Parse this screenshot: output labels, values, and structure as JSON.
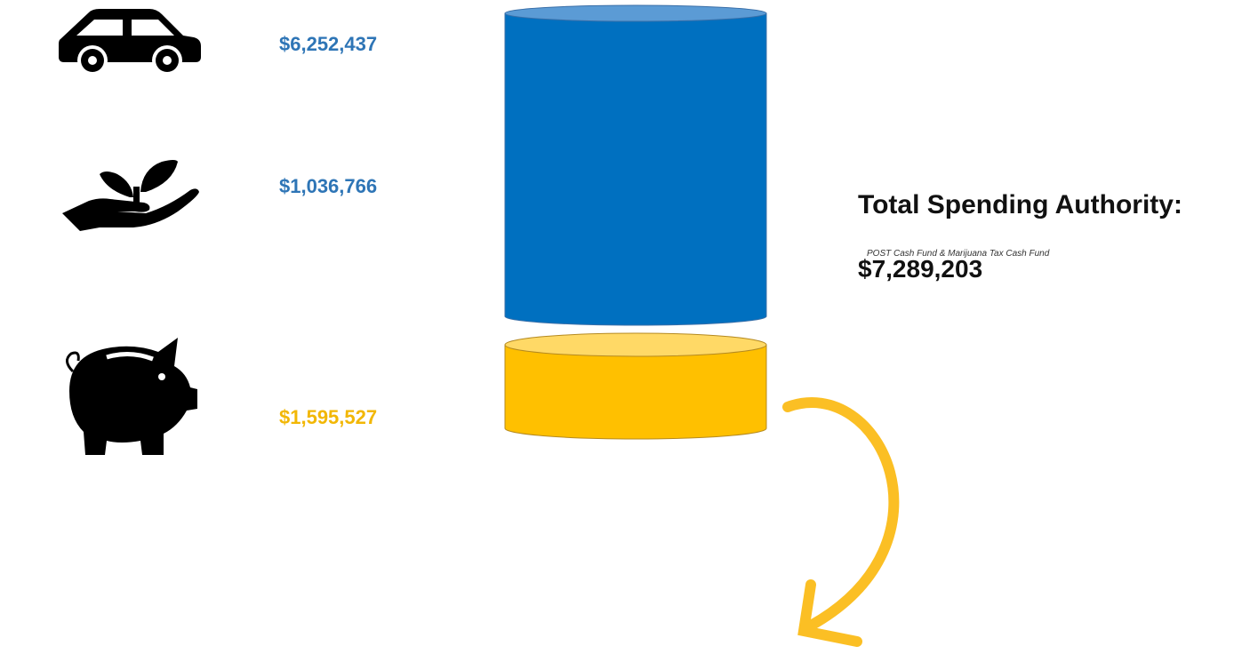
{
  "items": [
    {
      "amount": "$6,252,437"
    },
    {
      "amount": "$1,036,766"
    },
    {
      "amount": "$1,595,527"
    }
  ],
  "total": {
    "title": "Total Spending Authority:",
    "subtitle": "POST Cash Fund & Marijuana Tax Cash Fund",
    "amount": "$7,289,203"
  }
}
